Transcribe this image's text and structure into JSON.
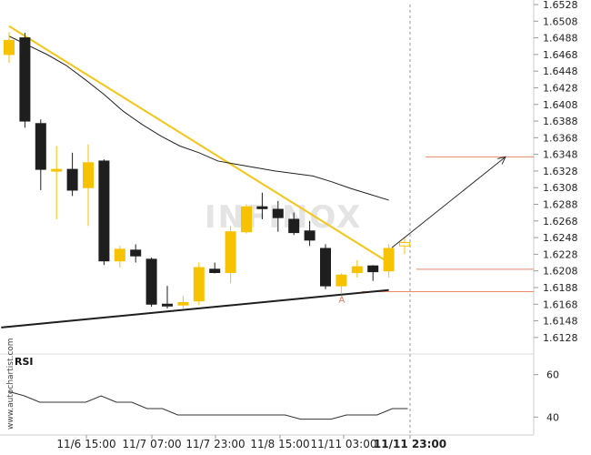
{
  "chart_data": {
    "type": "candlestick",
    "watermark": "INFINOX",
    "side_text": "www.autochartist.com",
    "rsi_label": "RSI",
    "y_ticks": [
      "1.6528",
      "1.6508",
      "1.6488",
      "1.6468",
      "1.6448",
      "1.6428",
      "1.6408",
      "1.6388",
      "1.6368",
      "1.6348",
      "1.6328",
      "1.6308",
      "1.6288",
      "1.6268",
      "1.6248",
      "1.6228",
      "1.6208",
      "1.6188",
      "1.6168",
      "1.6148",
      "1.6128"
    ],
    "ylim": [
      1.6118,
      1.6528
    ],
    "rsi_ticks": [
      "60",
      "40"
    ],
    "rsi_ylim": [
      35,
      65
    ],
    "x_labels": [
      {
        "label": "11/6 15:00",
        "bold": false
      },
      {
        "label": "11/7 07:00",
        "bold": false
      },
      {
        "label": "11/7 23:00",
        "bold": false
      },
      {
        "label": "11/8 15:00",
        "bold": false
      },
      {
        "label": "11/11 03:00",
        "bold": false
      },
      {
        "label": "11/11 23:00",
        "bold": true
      }
    ],
    "candles": [
      {
        "o": 1.6468,
        "h": 1.6495,
        "l": 1.6458,
        "c": 1.6485,
        "color": "yellow"
      },
      {
        "o": 1.6488,
        "h": 1.6494,
        "l": 1.638,
        "c": 1.6388,
        "color": "black"
      },
      {
        "o": 1.6385,
        "h": 1.639,
        "l": 1.6305,
        "c": 1.633,
        "color": "black"
      },
      {
        "o": 1.633,
        "h": 1.6358,
        "l": 1.627,
        "c": 1.633,
        "color": "yellow"
      },
      {
        "o": 1.633,
        "h": 1.635,
        "l": 1.6298,
        "c": 1.6305,
        "color": "black"
      },
      {
        "o": 1.6308,
        "h": 1.636,
        "l": 1.6262,
        "c": 1.6338,
        "color": "yellow"
      },
      {
        "o": 1.634,
        "h": 1.6342,
        "l": 1.6215,
        "c": 1.622,
        "color": "black"
      },
      {
        "o": 1.622,
        "h": 1.6238,
        "l": 1.6212,
        "c": 1.6234,
        "color": "yellow"
      },
      {
        "o": 1.6233,
        "h": 1.624,
        "l": 1.6218,
        "c": 1.6226,
        "color": "black"
      },
      {
        "o": 1.6222,
        "h": 1.6224,
        "l": 1.6165,
        "c": 1.6168,
        "color": "black"
      },
      {
        "o": 1.6168,
        "h": 1.619,
        "l": 1.6163,
        "c": 1.6168,
        "color": "black"
      },
      {
        "o": 1.6167,
        "h": 1.6178,
        "l": 1.6163,
        "c": 1.617,
        "color": "yellow"
      },
      {
        "o": 1.6172,
        "h": 1.6218,
        "l": 1.6167,
        "c": 1.6212,
        "color": "yellow"
      },
      {
        "o": 1.621,
        "h": 1.6218,
        "l": 1.6205,
        "c": 1.6206,
        "color": "black"
      },
      {
        "o": 1.6206,
        "h": 1.6262,
        "l": 1.6193,
        "c": 1.6255,
        "color": "yellow"
      },
      {
        "o": 1.6255,
        "h": 1.6288,
        "l": 1.6253,
        "c": 1.6285,
        "color": "yellow"
      },
      {
        "o": 1.6285,
        "h": 1.6302,
        "l": 1.627,
        "c": 1.6284,
        "color": "black"
      },
      {
        "o": 1.6282,
        "h": 1.6292,
        "l": 1.6255,
        "c": 1.6272,
        "color": "black"
      },
      {
        "o": 1.627,
        "h": 1.6278,
        "l": 1.6251,
        "c": 1.6254,
        "color": "black"
      },
      {
        "o": 1.6256,
        "h": 1.6268,
        "l": 1.6238,
        "c": 1.6245,
        "color": "black"
      },
      {
        "o": 1.6235,
        "h": 1.624,
        "l": 1.6186,
        "c": 1.619,
        "color": "black"
      },
      {
        "o": 1.619,
        "h": 1.6205,
        "l": 1.618,
        "c": 1.6203,
        "color": "yellow"
      },
      {
        "o": 1.6206,
        "h": 1.6221,
        "l": 1.62,
        "c": 1.6213,
        "color": "yellow"
      },
      {
        "o": 1.6214,
        "h": 1.6215,
        "l": 1.6196,
        "c": 1.6207,
        "color": "black"
      },
      {
        "o": 1.6208,
        "h": 1.624,
        "l": 1.62,
        "c": 1.6235,
        "color": "yellow"
      },
      {
        "o": 1.6238,
        "h": 1.6248,
        "l": 1.6228,
        "c": 1.6242,
        "color": "outline"
      }
    ],
    "moving_average": [
      1.649,
      1.6479,
      1.6468,
      1.6455,
      1.6438,
      1.642,
      1.64,
      1.6384,
      1.637,
      1.6358,
      1.635,
      1.634,
      1.6336,
      1.6332,
      1.6328,
      1.6325,
      1.6322,
      1.6315,
      1.6307,
      1.63,
      1.6293
    ],
    "upper_trendline": {
      "from": {
        "index": 0,
        "value": 1.6502
      },
      "to": {
        "index": 24,
        "value": 1.6218
      }
    },
    "lower_trendline": {
      "from": {
        "index": -0.5,
        "value": 1.614
      },
      "to": {
        "index": 24,
        "value": 1.6185
      }
    },
    "target_level": 1.6345,
    "breakout_level": 1.621,
    "support_level": 1.6183,
    "point_label": "A",
    "point_index": 21,
    "rsi_values": [
      52,
      50,
      47,
      47,
      47,
      47,
      50,
      47,
      47,
      44,
      44,
      41,
      41,
      41,
      41,
      41,
      41,
      41,
      41,
      39,
      39,
      39,
      41,
      41,
      41,
      44,
      44
    ],
    "colors": {
      "bull": "#f7c200",
      "bear": "#1e1e1e",
      "upper_trend": "#f5c518",
      "lower_trend": "#1e1e1e",
      "levels": "#e8876a",
      "ma": "#222222"
    }
  }
}
